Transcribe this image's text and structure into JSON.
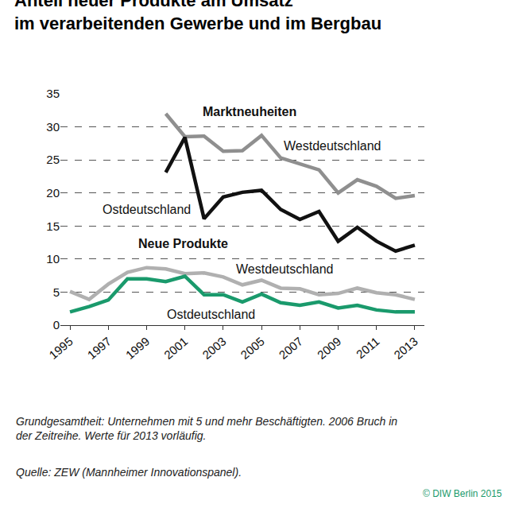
{
  "chart_data": {
    "type": "line",
    "title": [
      "Anteil neuer Produkte am Umsatz",
      "im verarbeitenden Gewerbe und im Bergbau"
    ],
    "x": [
      1995,
      1996,
      1997,
      1998,
      1999,
      2000,
      2001,
      2002,
      2003,
      2004,
      2005,
      2006,
      2007,
      2008,
      2009,
      2010,
      2011,
      2012,
      2013
    ],
    "series": [
      {
        "name": "Westdeutschland",
        "group": "Marktneuheiten",
        "color": "#8f8f8f",
        "values": [
          null,
          null,
          null,
          null,
          null,
          32.0,
          28.5,
          28.6,
          26.3,
          26.4,
          28.7,
          25.3,
          24.4,
          23.5,
          20.0,
          22.0,
          21.0,
          19.2,
          19.6
        ]
      },
      {
        "name": "Ostdeutschland",
        "group": "Marktneuheiten",
        "color": "#111111",
        "values": [
          null,
          null,
          null,
          null,
          null,
          23.1,
          28.4,
          16.1,
          19.4,
          20.1,
          20.4,
          17.5,
          16.0,
          17.2,
          12.7,
          14.8,
          12.7,
          11.2,
          12.1
        ]
      },
      {
        "name": "Westdeutschland",
        "group": "Neue Produkte",
        "color": "#b0b0b0",
        "values": [
          5.1,
          3.9,
          6.2,
          8.0,
          8.7,
          8.5,
          7.8,
          7.9,
          7.3,
          6.1,
          6.8,
          5.6,
          5.5,
          4.6,
          4.8,
          5.6,
          4.9,
          4.6,
          3.9
        ]
      },
      {
        "name": "Ostdeutschland",
        "group": "Neue Produkte",
        "color": "#1a9a6c",
        "values": [
          2.0,
          2.8,
          3.8,
          7.0,
          7.0,
          6.6,
          7.4,
          4.6,
          4.6,
          3.5,
          4.7,
          3.4,
          3.0,
          3.5,
          2.6,
          3.0,
          2.3,
          2.0,
          2.0
        ]
      }
    ],
    "xlim": [
      1994.5,
      2013.5
    ],
    "xticks": [
      1995,
      1997,
      1999,
      2001,
      2003,
      2005,
      2007,
      2009,
      2011,
      2013
    ],
    "ylim": [
      0,
      35
    ],
    "yticks": [
      0,
      5,
      10,
      15,
      20,
      25,
      30,
      35
    ],
    "grid": true,
    "note": [
      "Grundgesamtheit: Unternehmen mit 5 und mehr Beschäftigten. 2006 Bruch in",
      "der Zeitreihe. Werte für 2013 vorläufig."
    ],
    "source": "Quelle: ZEW (Mannheimer Innovationspanel).",
    "credit": "© DIW Berlin 2015"
  }
}
